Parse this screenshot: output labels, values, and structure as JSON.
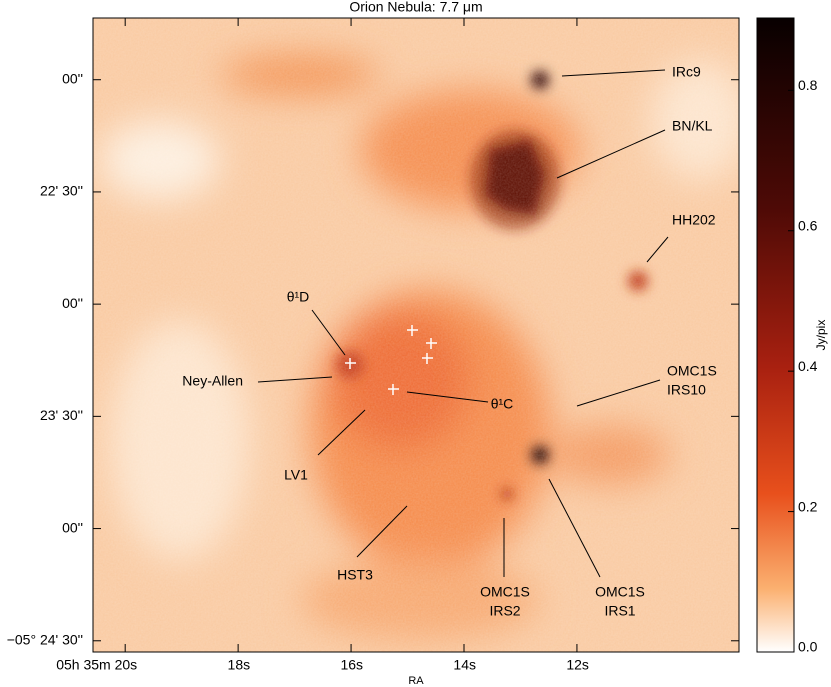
{
  "chart_data": {
    "type": "image",
    "title": "Orion Nebula: 7.7 μm",
    "xlabel": "RA",
    "colorbar_label": "Jy/pix",
    "xlim": [
      20.57,
      9.13
    ],
    "xticks": [
      {
        "value": 20,
        "label": "05h 35m 20s"
      },
      {
        "value": 18,
        "label": "18s"
      },
      {
        "value": 16,
        "label": "16s"
      },
      {
        "value": 14,
        "label": "14s"
      },
      {
        "value": 12,
        "label": "12s"
      }
    ],
    "ylim": [
      1303.5,
      1473
    ],
    "yticks": [
      {
        "value": 1320,
        "label": "00''"
      },
      {
        "value": 1350,
        "label": "22' 30''"
      },
      {
        "value": 1380,
        "label": "00''"
      },
      {
        "value": 1410,
        "label": "23' 30''"
      },
      {
        "value": 1440,
        "label": "00''"
      },
      {
        "value": 1470,
        "label": "−05° 24' 30''"
      }
    ],
    "clim": [
      0,
      0.903
    ],
    "cticks": [
      {
        "value": 0,
        "label": "0.0"
      },
      {
        "value": 0.2,
        "label": "0.2"
      },
      {
        "value": 0.4,
        "label": "0.4"
      },
      {
        "value": 0.6,
        "label": "0.6"
      },
      {
        "value": 0.8,
        "label": "0.8"
      }
    ],
    "annotations": [
      [
        "IRc9"
      ],
      [
        "BN/KL"
      ],
      [
        "HH202"
      ],
      [
        "θ¹D"
      ],
      [
        "Ney-Allen"
      ],
      [
        "θ¹C"
      ],
      [
        "OMC1S",
        "IRS10"
      ],
      [
        "LV1"
      ],
      [
        "HST3"
      ],
      [
        "OMC1S",
        "IRS2"
      ],
      [
        "OMC1S",
        "IRS1"
      ]
    ]
  }
}
